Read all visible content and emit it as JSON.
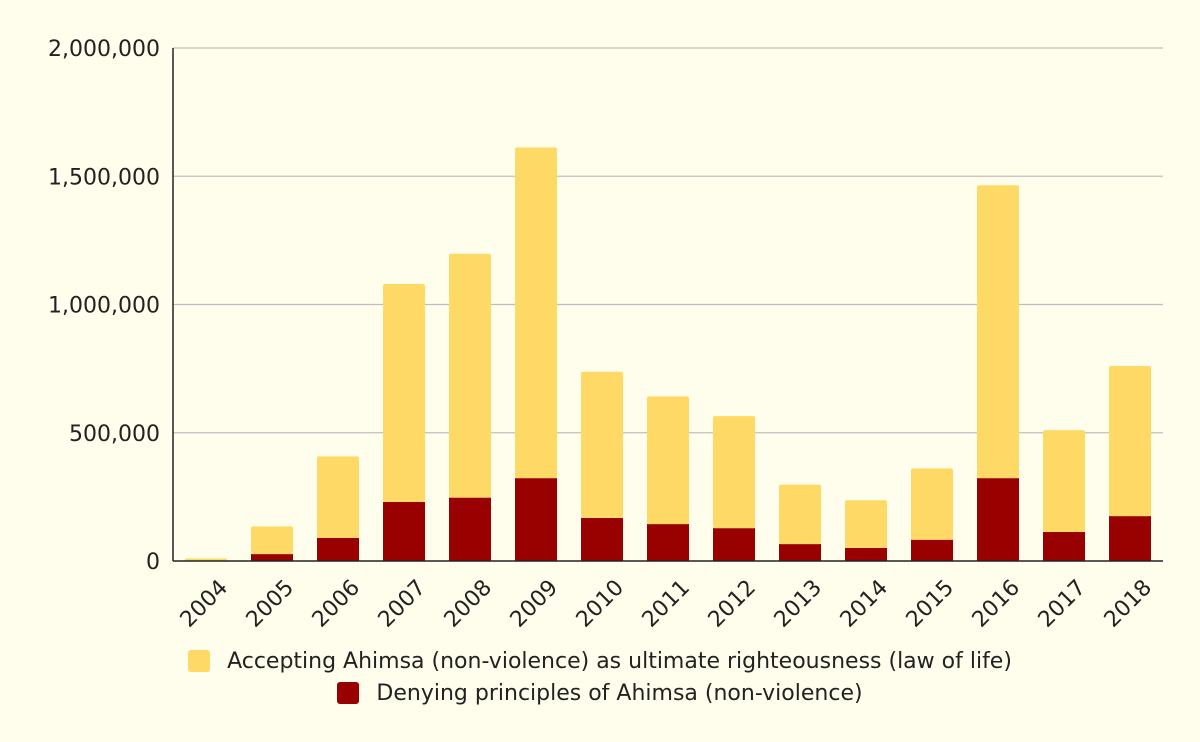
{
  "chart_data": {
    "type": "bar",
    "stacked": true,
    "categories": [
      "2004",
      "2005",
      "2006",
      "2007",
      "2008",
      "2009",
      "2010",
      "2011",
      "2012",
      "2013",
      "2014",
      "2015",
      "2016",
      "2017",
      "2018"
    ],
    "series": [
      {
        "name": "Denying principles of Ahimsa (non-violence)",
        "color": "#990000",
        "values": [
          2000,
          27000,
          90000,
          230000,
          247000,
          323000,
          168000,
          144000,
          128000,
          66000,
          51000,
          83000,
          323000,
          113000,
          175000
        ]
      },
      {
        "name": "Accepting Ahimsa (non-violence) as ultimate righteousness (law of life)",
        "color": "#ffd966",
        "values": [
          8000,
          108000,
          318000,
          850000,
          951000,
          1289000,
          570000,
          498000,
          437000,
          232000,
          186000,
          278000,
          1142000,
          397000,
          585000
        ]
      }
    ],
    "legend_order": [
      1,
      0
    ],
    "y_ticks": [
      0,
      500000,
      1000000,
      1500000,
      2000000
    ],
    "y_tick_labels": [
      "0",
      "500,000",
      "1,000,000",
      "1,500,000",
      "2,000,000"
    ],
    "ylim": [
      0,
      2000000
    ],
    "title": "",
    "xlabel": "",
    "ylabel": "",
    "grid": true,
    "legend_position": "bottom"
  }
}
